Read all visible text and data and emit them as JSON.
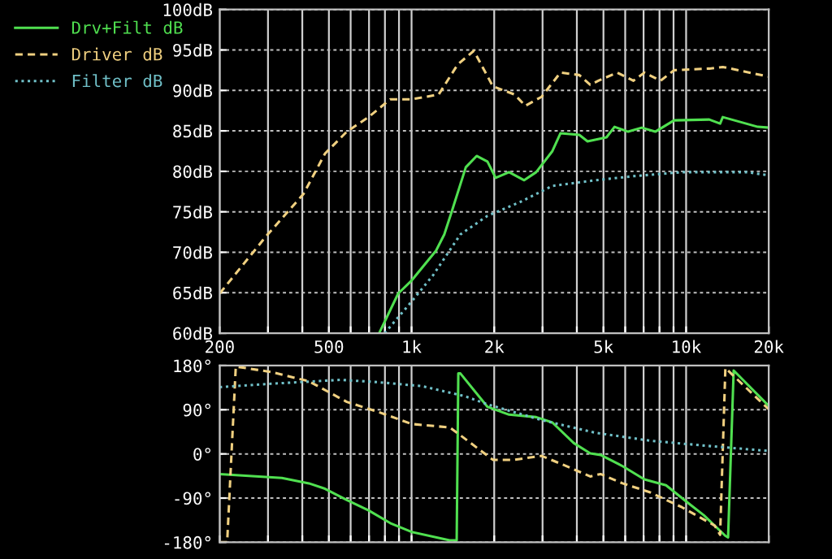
{
  "chart_data": [
    {
      "type": "line",
      "log": "x",
      "xlim": [
        200,
        20000
      ],
      "ylim": [
        60,
        100
      ],
      "xticks": [
        200,
        {
          "value": 300,
          "label": null
        },
        {
          "value": 400,
          "label": null
        },
        500,
        {
          "value": 600,
          "label": null
        },
        {
          "value": 700,
          "label": null
        },
        {
          "value": 800,
          "label": null
        },
        {
          "value": 900,
          "label": null
        },
        {
          "value": 1000,
          "label": "1k"
        },
        {
          "value": 2000,
          "label": "2k"
        },
        {
          "value": 3000,
          "label": null
        },
        {
          "value": 4000,
          "label": null
        },
        {
          "value": 5000,
          "label": "5k"
        },
        {
          "value": 6000,
          "label": null
        },
        {
          "value": 7000,
          "label": null
        },
        {
          "value": 8000,
          "label": null
        },
        {
          "value": 9000,
          "label": null
        },
        {
          "value": 10000,
          "label": "10k"
        },
        {
          "value": 20000,
          "label": "20k"
        }
      ],
      "yticks": [
        {
          "value": 60,
          "label": "60dB"
        },
        {
          "value": 65,
          "label": "65dB"
        },
        {
          "value": 70,
          "label": "70dB"
        },
        {
          "value": 75,
          "label": "75dB"
        },
        {
          "value": 80,
          "label": "80dB"
        },
        {
          "value": 85,
          "label": "85dB"
        },
        {
          "value": 90,
          "label": "90dB"
        },
        {
          "value": 95,
          "label": "95dB"
        },
        {
          "value": 100,
          "label": "100dB"
        }
      ],
      "grid": true,
      "legend": "top left",
      "series": [
        {
          "name": "Drv+Filt dB",
          "color": "#50e050",
          "line_style": "solid",
          "x": [
            762,
            894,
            1000,
            1228,
            1316,
            1406,
            1576,
            1726,
            1890,
            2024,
            2266,
            2572,
            2844,
            3258,
            3485,
            4083,
            4375,
            5130,
            5486,
            6150,
            6890,
            7720,
            9040,
            12140,
            13300,
            13600,
            18240,
            20000
          ],
          "values": [
            60,
            64.9,
            66.5,
            70.2,
            72.2,
            75.2,
            80.5,
            81.9,
            81.2,
            79.2,
            79.9,
            78.9,
            79.9,
            82.5,
            84.7,
            84.5,
            83.7,
            84.2,
            85.5,
            84.9,
            85.4,
            84.9,
            86.3,
            86.4,
            85.9,
            86.7,
            85.5,
            85.4
          ]
        },
        {
          "name": "Driver dB",
          "color": "#f0d080",
          "line_style": "dashed",
          "x": [
            200,
            294,
            404,
            484,
            581,
            697,
            836,
            1000,
            1256,
            1472,
            1686,
            1978,
            2372,
            2596,
            2974,
            3485,
            4083,
            4476,
            4790,
            5612,
            6430,
            7046,
            8070,
            9040,
            12140,
            13600,
            20000
          ],
          "values": [
            64.9,
            71.9,
            77.2,
            82.2,
            84.9,
            86.7,
            88.9,
            88.9,
            89.5,
            93.2,
            94.9,
            90.5,
            89.5,
            88.1,
            89.2,
            92.2,
            91.9,
            90.7,
            91.2,
            92.2,
            91.2,
            92.2,
            91.2,
            92.5,
            92.7,
            92.9,
            91.7
          ]
        },
        {
          "name": "Filter dB",
          "color": "#70c0c8",
          "line_style": "dotted",
          "x": [
            798,
            1000,
            1200,
            1506,
            1890,
            2484,
            3258,
            4680,
            6430,
            9680,
            16700,
            20000
          ],
          "values": [
            60,
            63.9,
            67.2,
            72.2,
            74.5,
            76.2,
            78.2,
            78.9,
            79.4,
            79.9,
            79.9,
            79.5
          ]
        }
      ]
    },
    {
      "type": "line",
      "log": "x",
      "xlim": [
        200,
        20000
      ],
      "ylim": [
        -180,
        180
      ],
      "tick_labels": "y",
      "xticks": [
        {
          "value": 200,
          "label": null
        },
        {
          "value": 300,
          "label": null
        },
        {
          "value": 400,
          "label": null
        },
        {
          "value": 500,
          "label": null
        },
        {
          "value": 600,
          "label": null
        },
        {
          "value": 700,
          "label": null
        },
        {
          "value": 800,
          "label": null
        },
        {
          "value": 900,
          "label": null
        },
        {
          "value": 1000,
          "label": null
        },
        {
          "value": 2000,
          "label": null
        },
        {
          "value": 3000,
          "label": null
        },
        {
          "value": 4000,
          "label": null
        },
        {
          "value": 5000,
          "label": null
        },
        {
          "value": 6000,
          "label": null
        },
        {
          "value": 7000,
          "label": null
        },
        {
          "value": 8000,
          "label": null
        },
        {
          "value": 9000,
          "label": null
        },
        {
          "value": 10000,
          "label": null
        },
        {
          "value": 20000,
          "label": null
        }
      ],
      "yticks": [
        {
          "value": -180,
          "label": "-180°"
        },
        {
          "value": -90,
          "label": "-90°"
        },
        {
          "value": 0,
          "label": "0°"
        },
        {
          "value": 90,
          "label": "90°"
        },
        {
          "value": 180,
          "label": "180°"
        }
      ],
      "grid": true,
      "series": [
        {
          "color": "#50e050",
          "line_style": "solid",
          "x": [
            200,
            337,
            423,
            484,
            581,
            697,
            836,
            1000,
            1376,
            1460,
            1480,
            1506,
            1890,
            2266,
            2844,
            3258,
            3900,
            4476,
            4880,
            5870,
            7046,
            8450,
            10120,
            11600,
            13900,
            14220,
            14900,
            20000
          ],
          "values": [
            -41,
            -49,
            -60,
            -71,
            -94,
            -115,
            -141,
            -159,
            -176,
            -176,
            164,
            164,
            96,
            80,
            75,
            64,
            22,
            1,
            -2,
            -25,
            -52,
            -64,
            -99,
            -125,
            -167,
            -170,
            170,
            98
          ]
        },
        {
          "color": "#f0d080",
          "line_style": "dashed",
          "x": [
            200,
            213,
            229,
            308,
            423,
            581,
            762,
            1000,
            1376,
            1506,
            1978,
            2372,
            2974,
            3560,
            4476,
            4880,
            5870,
            7370,
            9680,
            12700,
            13300,
            13900,
            20000
          ],
          "values": [
            -180,
            -180,
            178,
            167,
            148,
            106,
            85,
            61,
            54,
            38,
            -12,
            -12,
            -4,
            -22,
            -46,
            -41,
            -60,
            -78,
            -109,
            -146,
            -165,
            175,
            91
          ]
        },
        {
          "color": "#70c0c8",
          "line_style": "dotted",
          "x": [
            200,
            308,
            553,
            762,
            1097,
            1576,
            1890,
            2974,
            4680,
            7370,
            11600,
            20000
          ],
          "values": [
            136,
            143,
            151,
            146,
            138,
            117,
            101,
            69,
            43,
            27,
            17,
            6
          ]
        }
      ]
    }
  ]
}
